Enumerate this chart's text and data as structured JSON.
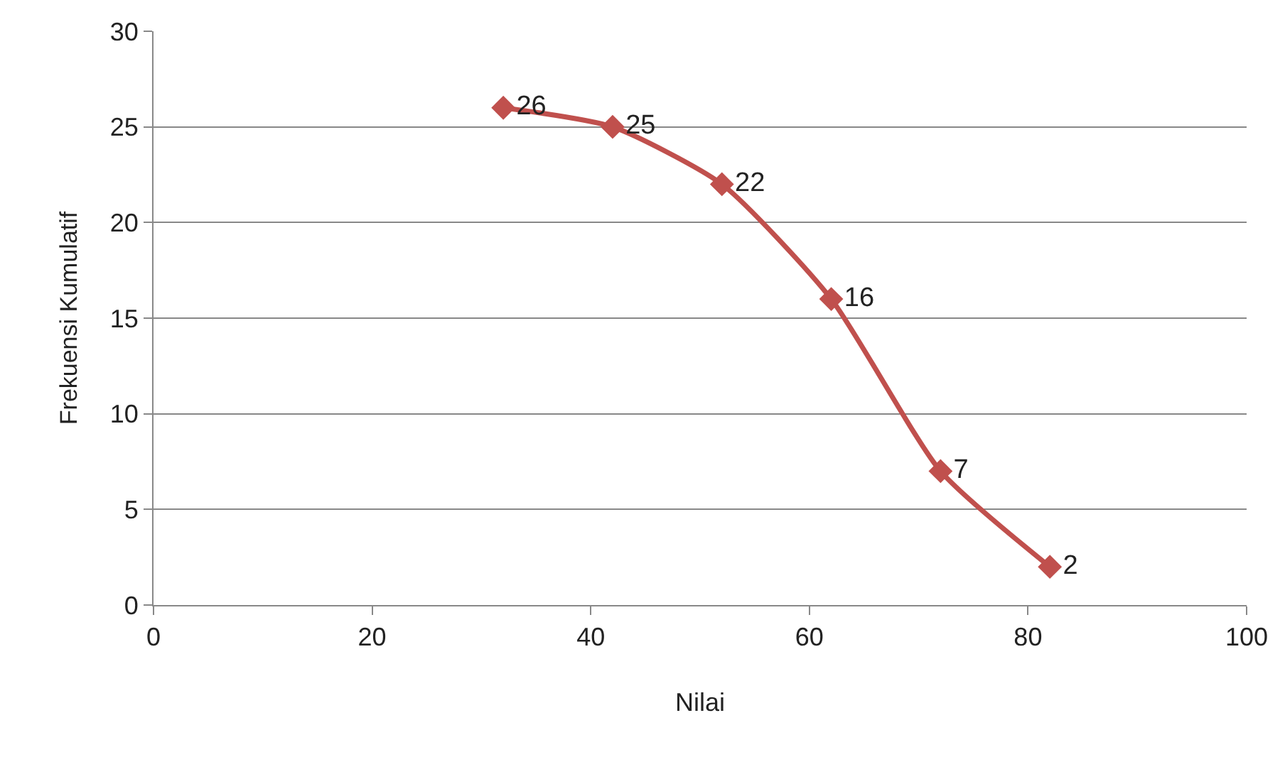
{
  "chart_data": {
    "type": "line",
    "xlabel": "Nilai",
    "ylabel": "Frekuensi Kumulatif",
    "x": [
      32,
      42,
      52,
      62,
      72,
      82
    ],
    "series": [
      {
        "color": "#c0504d",
        "values": [
          26,
          25,
          22,
          16,
          7,
          2
        ]
      }
    ],
    "xlim": [
      0,
      100
    ],
    "xticks": [
      0,
      20,
      40,
      60,
      80,
      100
    ],
    "ylim": [
      0,
      30
    ],
    "yticks": [
      0,
      5,
      10,
      15,
      20,
      25,
      30
    ],
    "grid": "y",
    "legend": false,
    "marker": "diamond",
    "line_style": "solid",
    "data_labels": true
  }
}
